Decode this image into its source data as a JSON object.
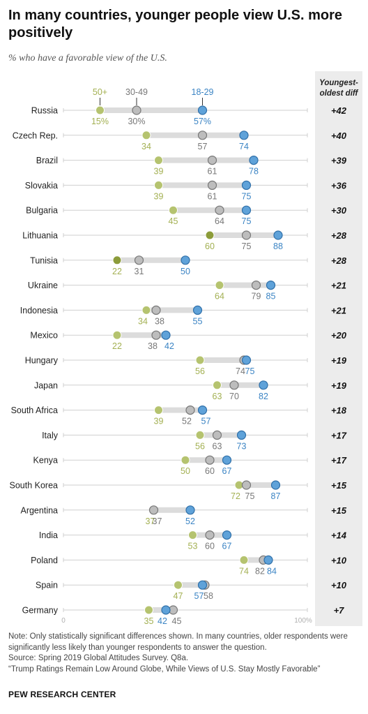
{
  "title": "In many countries, younger people view U.S. more positively",
  "subtitle": "% who have a favorable view of the U.S.",
  "diff_header": "Youngest-oldest diff",
  "notes": {
    "note": "Note: Only statistically significant differences shown. In many countries, older respondents were significantly less likely than younger respondents to answer the question.",
    "source": "Source: Spring 2019 Global Attitudes Survey. Q8a.",
    "report": "“Trump Ratings Remain Low Around Globe, While Views of U.S. Stay Mostly Favorable”"
  },
  "footer": "PEW RESEARCH CENTER",
  "colors": {
    "age_50plus": "#b5c36f",
    "age_50plus_dark": "#8c9c3a",
    "age_30_49": "#bdbdbd",
    "age_18_29": "#5fa2d9",
    "bar": "#dcdcdc"
  },
  "chart_data": {
    "type": "dot",
    "title": "In many countries, younger people view U.S. more positively",
    "subtitle": "% who have a favorable view of the U.S.",
    "xlim": [
      0,
      100
    ],
    "axis_labels": [
      "0",
      "100%"
    ],
    "series": [
      {
        "name": "50+",
        "key": "older"
      },
      {
        "name": "30-49",
        "key": "middle"
      },
      {
        "name": "18-29",
        "key": "young"
      }
    ],
    "countries": [
      {
        "name": "Russia",
        "older": 15,
        "middle": 30,
        "young": 57,
        "diff": "+42",
        "older_label": "15%",
        "middle_label": "30%",
        "young_label": "57%"
      },
      {
        "name": "Czech Rep.",
        "older": 34,
        "middle": 57,
        "young": 74,
        "diff": "+40",
        "older_label": "34",
        "middle_label": "57",
        "young_label": "74"
      },
      {
        "name": "Brazil",
        "older": 39,
        "middle": 61,
        "young": 78,
        "diff": "+39",
        "older_label": "39",
        "middle_label": "61",
        "young_label": "78"
      },
      {
        "name": "Slovakia",
        "older": 39,
        "middle": 61,
        "young": 75,
        "diff": "+36",
        "older_label": "39",
        "middle_label": "61",
        "young_label": "75"
      },
      {
        "name": "Bulgaria",
        "older": 45,
        "middle": 64,
        "young": 75,
        "diff": "+30",
        "older_label": "45",
        "middle_label": "64",
        "young_label": "75"
      },
      {
        "name": "Lithuania",
        "older": 60,
        "middle": 75,
        "young": 88,
        "diff": "+28",
        "older_label": "60",
        "middle_label": "75",
        "young_label": "88",
        "older_dark": true
      },
      {
        "name": "Tunisia",
        "older": 22,
        "middle": 31,
        "young": 50,
        "diff": "+28",
        "older_label": "22",
        "middle_label": "31",
        "young_label": "50",
        "older_dark": true
      },
      {
        "name": "Ukraine",
        "older": 64,
        "middle": 79,
        "young": 85,
        "diff": "+21",
        "older_label": "64",
        "middle_label": "79",
        "young_label": "85"
      },
      {
        "name": "Indonesia",
        "older": 34,
        "middle": 38,
        "young": 55,
        "diff": "+21",
        "older_label": "34",
        "middle_label": "38",
        "young_label": "55"
      },
      {
        "name": "Mexico",
        "older": 22,
        "middle": 38,
        "young": 42,
        "diff": "+20",
        "older_label": "22",
        "middle_label": "38",
        "young_label": "42"
      },
      {
        "name": "Hungary",
        "older": 56,
        "middle": 74,
        "young": 75,
        "diff": "+19",
        "older_label": "56",
        "middle_label": "74",
        "young_label": "75"
      },
      {
        "name": "Japan",
        "older": 63,
        "middle": 70,
        "young": 82,
        "diff": "+19",
        "older_label": "63",
        "middle_label": "70",
        "young_label": "82"
      },
      {
        "name": "South Africa",
        "older": 39,
        "middle": 52,
        "young": 57,
        "diff": "+18",
        "older_label": "39",
        "middle_label": "52",
        "young_label": "57"
      },
      {
        "name": "Italy",
        "older": 56,
        "middle": 63,
        "young": 73,
        "diff": "+17",
        "older_label": "56",
        "middle_label": "63",
        "young_label": "73"
      },
      {
        "name": "Kenya",
        "older": 50,
        "middle": 60,
        "young": 67,
        "diff": "+17",
        "older_label": "50",
        "middle_label": "60",
        "young_label": "67"
      },
      {
        "name": "South Korea",
        "older": 72,
        "middle": 75,
        "young": 87,
        "diff": "+15",
        "older_label": "72",
        "middle_label": "75",
        "young_label": "87"
      },
      {
        "name": "Argentina",
        "older": 37,
        "middle": 37,
        "young": 52,
        "diff": "+15",
        "older_label": "37",
        "middle_label": "37",
        "young_label": "52"
      },
      {
        "name": "India",
        "older": 53,
        "middle": 60,
        "young": 67,
        "diff": "+14",
        "older_label": "53",
        "middle_label": "60",
        "young_label": "67"
      },
      {
        "name": "Poland",
        "older": 74,
        "middle": 82,
        "young": 84,
        "diff": "+10",
        "older_label": "74",
        "middle_label": "82",
        "young_label": "84"
      },
      {
        "name": "Spain",
        "older": 47,
        "middle": 58,
        "young": 57,
        "diff": "+10",
        "older_label": "47",
        "middle_label": "58",
        "young_label": "57"
      },
      {
        "name": "Germany",
        "older": 35,
        "middle": 45,
        "young": 42,
        "diff": "+7",
        "older_label": "35",
        "middle_label": "45",
        "young_label": "42"
      }
    ]
  }
}
